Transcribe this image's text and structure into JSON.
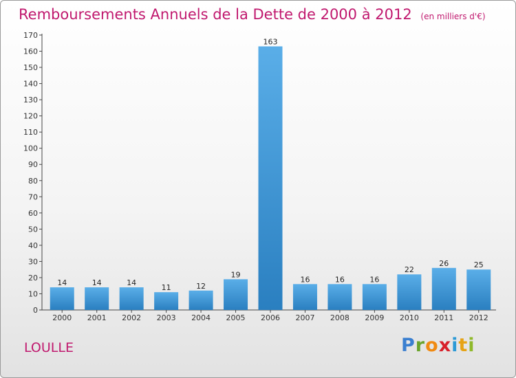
{
  "title": {
    "main": "Remboursements Annuels de la Dette de 2000 à 2012",
    "unit": "(en milliers d'€)"
  },
  "commune": "LOULLE",
  "logo": {
    "letters": [
      "P",
      "r",
      "o",
      "x",
      "i",
      "t",
      "i"
    ]
  },
  "colors": {
    "title": "#c0186e",
    "bar_light": "#5aaee8",
    "bar_dark": "#2a7fc0"
  },
  "chart_data": {
    "type": "bar",
    "categories": [
      "2000",
      "2001",
      "2002",
      "2003",
      "2004",
      "2005",
      "2006",
      "2007",
      "2008",
      "2009",
      "2010",
      "2011",
      "2012"
    ],
    "values": [
      14,
      14,
      14,
      11,
      12,
      19,
      163,
      16,
      16,
      16,
      22,
      26,
      25
    ],
    "ylim": [
      0,
      170
    ],
    "yticks": [
      0,
      10,
      20,
      30,
      40,
      50,
      60,
      70,
      80,
      90,
      100,
      110,
      120,
      130,
      140,
      150,
      160,
      170
    ],
    "grid": false
  }
}
